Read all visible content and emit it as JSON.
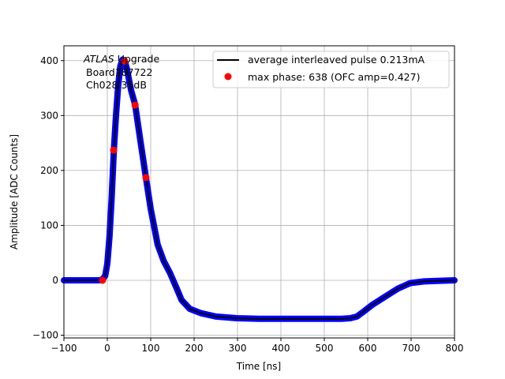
{
  "chart_data": {
    "type": "line",
    "xlabel": "Time [ns]",
    "ylabel": "Amplitude [ADC Counts]",
    "xlim": [
      -100,
      800
    ],
    "ylim": [
      -105,
      427
    ],
    "xticks": [
      -100,
      0,
      100,
      200,
      300,
      400,
      500,
      600,
      700,
      800
    ],
    "yticks": [
      -100,
      0,
      100,
      200,
      300,
      400
    ],
    "grid": true,
    "annotation": {
      "italic": "ATLAS",
      "rest": " Upgrade",
      "line2": "Board187722",
      "line3": "Ch028 35dB"
    },
    "legend": {
      "placement": "top-right",
      "entries": [
        "average interleaved pulse 0.213mA",
        "max phase: 638 (OFC amp=0.427)"
      ]
    },
    "series": [
      {
        "name": "average interleaved pulse 0.213mA",
        "color": "#000000",
        "band_color": "#0000ff",
        "x": [
          -100,
          -40,
          -20,
          -12,
          -5,
          0,
          5,
          10,
          15,
          20,
          25,
          30,
          35,
          40,
          45,
          50,
          55,
          64,
          75,
          89,
          100,
          116,
          130,
          144,
          160,
          171,
          190,
          216,
          250,
          298,
          350,
          400,
          450,
          500,
          540,
          560,
          575,
          589,
          610,
          644,
          670,
          698,
          730,
          760,
          800
        ],
        "y": [
          0,
          0,
          0,
          1,
          8,
          30,
          80,
          150,
          237,
          300,
          355,
          390,
          402,
          400,
          385,
          365,
          345,
          320,
          260,
          187,
          130,
          65,
          35,
          14,
          -15,
          -36,
          -52,
          -60,
          -66,
          -69,
          -70,
          -70,
          -70,
          -70,
          -70,
          -69,
          -66,
          -58,
          -45,
          -28,
          -15,
          -5,
          -2,
          -1,
          0
        ]
      },
      {
        "name": "max phase: 638 (OFC amp=0.427)",
        "color": "#ff0000",
        "x": [
          -11,
          14.5,
          40,
          64,
          89
        ],
        "y": [
          0,
          237,
          399,
          319,
          187
        ]
      }
    ]
  }
}
